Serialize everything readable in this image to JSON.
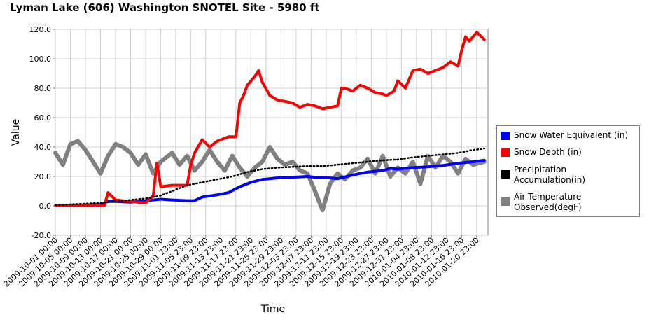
{
  "chart_data": {
    "type": "line",
    "title": "Lyman Lake (606) Washington  SNOTEL Site - 5980 ft",
    "xlabel": "Time",
    "ylabel": "Value",
    "ylim": [
      -20,
      120
    ],
    "yticks": [
      "120.0",
      "100.0",
      "80.0",
      "60.0",
      "40.0",
      "20.0",
      "0.0",
      "-20.0"
    ],
    "ytick_values": [
      120,
      100,
      80,
      60,
      40,
      20,
      0,
      -20
    ],
    "xrange": [
      "2009-10-01 00:00",
      "2010-01-23 23:00"
    ],
    "xticks": [
      "2009-10-01 00:00",
      "2009-10-05 00:00",
      "2009-10-09 00:00",
      "2009-10-13 00:00",
      "2009-10-17 00:00",
      "2009-10-21 00:00",
      "2009-10-25 00:00",
      "2009-10-29 00:00",
      "2009-11-01 23:00",
      "2009-11-05 23:00",
      "2009-11-09 23:00",
      "2009-11-13 23:00",
      "2009-11-17 23:00",
      "2009-11-21 23:00",
      "2009-11-25 23:00",
      "2009-11-29 23:00",
      "2009-12-03 23:00",
      "2009-12-07 23:00",
      "2009-12-11 23:00",
      "2009-12-15 23:00",
      "2009-12-19 23:00",
      "2009-12-23 23:00",
      "2009-12-27 23:00",
      "2009-12-31 23:00",
      "2010-01-04 23:00",
      "2010-01-08 23:00",
      "2010-01-12 23:00",
      "2010-01-16 23:00",
      "2010-01-20 23:00"
    ],
    "grid": true,
    "legend_position": "right",
    "series": [
      {
        "name": "Snow Water Equivalent (in)",
        "color": "#0000ff",
        "style": "thick",
        "x": [
          "2009-10-01",
          "2009-10-05",
          "2009-10-09",
          "2009-10-13",
          "2009-10-15",
          "2009-10-17",
          "2009-10-21",
          "2009-10-25",
          "2009-10-27",
          "2009-10-29",
          "2009-11-01",
          "2009-11-05",
          "2009-11-07",
          "2009-11-09",
          "2009-11-13",
          "2009-11-16",
          "2009-11-19",
          "2009-11-22",
          "2009-11-25",
          "2009-11-29",
          "2009-12-03",
          "2009-12-07",
          "2009-12-09",
          "2009-12-11",
          "2009-12-13",
          "2009-12-15",
          "2009-12-19",
          "2009-12-23",
          "2009-12-27",
          "2009-12-29",
          "2009-12-31",
          "2010-01-04",
          "2010-01-08",
          "2010-01-12",
          "2010-01-16",
          "2010-01-20",
          "2010-01-23"
        ],
        "y": [
          0,
          0.5,
          0.5,
          1,
          3,
          3,
          2.5,
          3.5,
          4,
          4.5,
          4,
          3.5,
          3.5,
          6,
          7.5,
          9,
          13,
          16,
          18,
          19,
          19.5,
          20,
          19.5,
          19.5,
          19,
          18.5,
          21,
          23,
          24,
          25.5,
          25,
          26,
          26.5,
          27.5,
          29,
          30,
          31
        ]
      },
      {
        "name": "Snow Depth (in)",
        "color": "#ff0000",
        "style": "thick",
        "x": [
          "2009-10-01",
          "2009-10-05",
          "2009-10-09",
          "2009-10-13",
          "2009-10-14",
          "2009-10-15",
          "2009-10-17",
          "2009-10-21",
          "2009-10-25",
          "2009-10-27",
          "2009-10-28",
          "2009-10-29",
          "2009-11-01",
          "2009-11-05",
          "2009-11-06",
          "2009-11-07",
          "2009-11-09",
          "2009-11-11",
          "2009-11-13",
          "2009-11-16",
          "2009-11-18",
          "2009-11-19",
          "2009-11-20",
          "2009-11-21",
          "2009-11-23",
          "2009-11-24",
          "2009-11-25",
          "2009-11-27",
          "2009-11-29",
          "2009-12-03",
          "2009-12-05",
          "2009-12-07",
          "2009-12-09",
          "2009-12-11",
          "2009-12-13",
          "2009-12-15",
          "2009-12-16",
          "2009-12-17",
          "2009-12-19",
          "2009-12-21",
          "2009-12-23",
          "2009-12-25",
          "2009-12-27",
          "2009-12-28",
          "2009-12-30",
          "2009-12-31",
          "2010-01-02",
          "2010-01-04",
          "2010-01-06",
          "2010-01-08",
          "2010-01-10",
          "2010-01-12",
          "2010-01-14",
          "2010-01-16",
          "2010-01-17",
          "2010-01-18",
          "2010-01-19",
          "2010-01-21",
          "2010-01-23"
        ],
        "y": [
          0,
          0,
          0,
          0,
          0,
          9,
          4,
          3,
          2,
          7,
          29,
          13,
          14,
          14,
          28,
          36,
          45,
          40,
          44,
          47,
          47,
          70,
          75,
          82,
          88,
          92,
          84,
          75,
          72,
          70,
          67,
          69,
          68,
          66,
          67,
          68,
          80,
          80,
          78,
          82,
          80,
          77,
          76,
          75,
          78,
          85,
          80,
          92,
          93,
          90,
          92,
          94,
          98,
          95,
          106,
          115,
          112,
          118,
          113
        ]
      },
      {
        "name": "Precipitation Accumulation(in)",
        "color": "#000000",
        "style": "dotted",
        "x": [
          "2009-10-01",
          "2009-10-05",
          "2009-10-09",
          "2009-10-13",
          "2009-10-17",
          "2009-10-21",
          "2009-10-25",
          "2009-10-29",
          "2009-11-01",
          "2009-11-05",
          "2009-11-09",
          "2009-11-13",
          "2009-11-17",
          "2009-11-21",
          "2009-11-25",
          "2009-11-29",
          "2009-12-03",
          "2009-12-07",
          "2009-12-11",
          "2009-12-15",
          "2009-12-19",
          "2009-12-23",
          "2009-12-27",
          "2009-12-31",
          "2010-01-04",
          "2010-01-08",
          "2010-01-12",
          "2010-01-16",
          "2010-01-20",
          "2010-01-23"
        ],
        "y": [
          0.5,
          1,
          1.5,
          2,
          3,
          4,
          5,
          7,
          10,
          14,
          16,
          18,
          20,
          23,
          25,
          26,
          26.5,
          27,
          27,
          28,
          29,
          30,
          31,
          31.5,
          33,
          34,
          35,
          36,
          38,
          39
        ]
      },
      {
        "name": "Air Temperature Observed(degF)",
        "color": "#808080",
        "style": "thick",
        "x": [
          "2009-10-01",
          "2009-10-03",
          "2009-10-05",
          "2009-10-07",
          "2009-10-09",
          "2009-10-11",
          "2009-10-13",
          "2009-10-15",
          "2009-10-17",
          "2009-10-19",
          "2009-10-21",
          "2009-10-23",
          "2009-10-25",
          "2009-10-27",
          "2009-10-29",
          "2009-11-01",
          "2009-11-03",
          "2009-11-05",
          "2009-11-07",
          "2009-11-09",
          "2009-11-11",
          "2009-11-13",
          "2009-11-15",
          "2009-11-17",
          "2009-11-19",
          "2009-11-21",
          "2009-11-23",
          "2009-11-25",
          "2009-11-27",
          "2009-11-29",
          "2009-12-01",
          "2009-12-03",
          "2009-12-05",
          "2009-12-07",
          "2009-12-09",
          "2009-12-11",
          "2009-12-13",
          "2009-12-15",
          "2009-12-17",
          "2009-12-19",
          "2009-12-21",
          "2009-12-23",
          "2009-12-25",
          "2009-12-27",
          "2009-12-29",
          "2009-12-31",
          "2010-01-02",
          "2010-01-04",
          "2010-01-06",
          "2010-01-08",
          "2010-01-10",
          "2010-01-12",
          "2010-01-14",
          "2010-01-16",
          "2010-01-18",
          "2010-01-20",
          "2010-01-23"
        ],
        "y": [
          36,
          28,
          42,
          44,
          38,
          30,
          22,
          34,
          42,
          40,
          36,
          28,
          35,
          22,
          30,
          36,
          28,
          34,
          24,
          30,
          38,
          30,
          24,
          34,
          26,
          20,
          26,
          30,
          40,
          32,
          28,
          30,
          24,
          22,
          10,
          -3,
          15,
          22,
          18,
          24,
          26,
          32,
          22,
          34,
          20,
          26,
          22,
          30,
          15,
          34,
          26,
          34,
          30,
          22,
          32,
          28,
          30
        ]
      }
    ]
  }
}
